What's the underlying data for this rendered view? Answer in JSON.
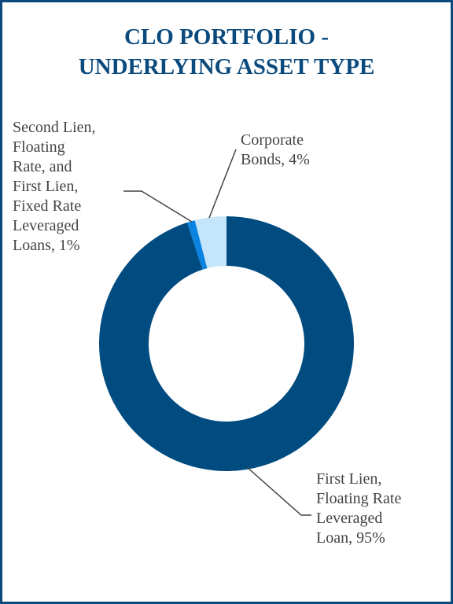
{
  "chart_data": {
    "type": "pie",
    "title": "CLO PORTFOLIO - UNDERLYING ASSET TYPE",
    "categories": [
      "First Lien, Floating Rate Leveraged Loan, 95%",
      "Second Lien, Floating Rate, and First Lien, Fixed Rate Leveraged Loans, 1%",
      "Corporate Bonds, 4%"
    ],
    "values": [
      95,
      1,
      4
    ],
    "colors": [
      "#004b80",
      "#0a84e0",
      "#c5e5fb"
    ]
  }
}
